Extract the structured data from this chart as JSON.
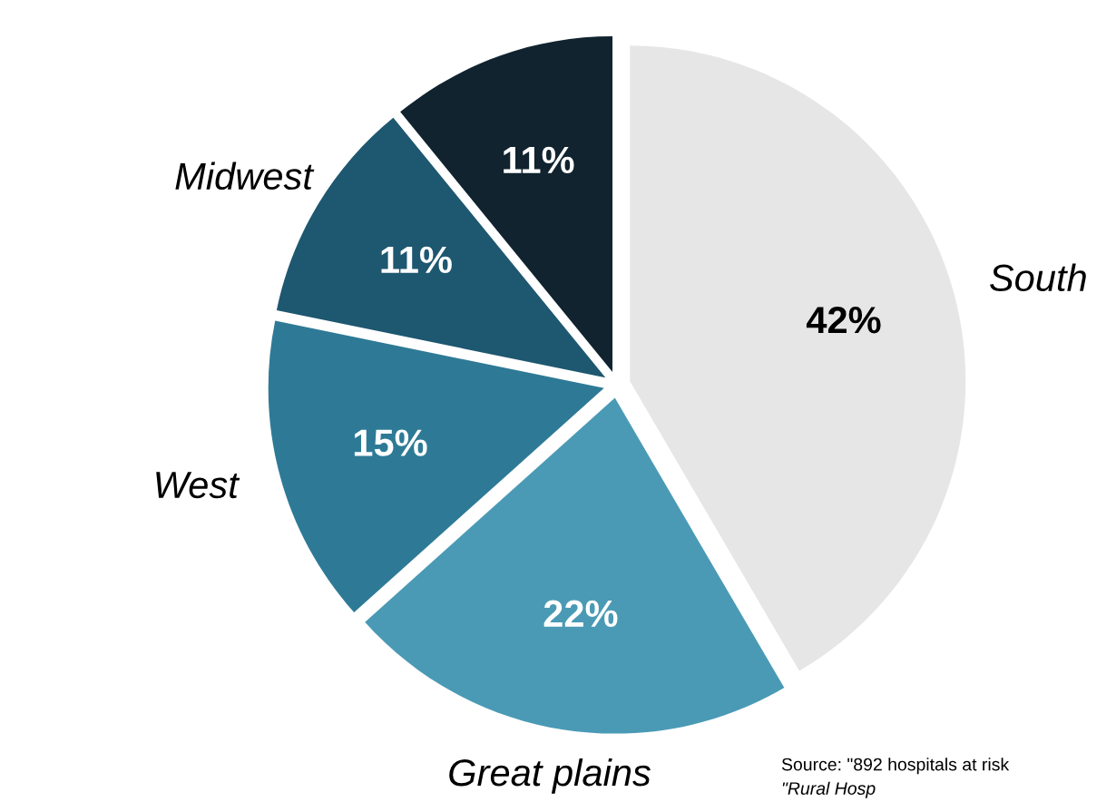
{
  "chart_data": {
    "type": "pie",
    "categories": [
      "South",
      "Great plains",
      "West",
      "Midwest",
      null
    ],
    "values": [
      42,
      22,
      15,
      11,
      11
    ],
    "colors": [
      "#e6e6e6",
      "#4a9ab5",
      "#2e7a96",
      "#1e5770",
      "#10232f"
    ],
    "value_labels": [
      "42%",
      "22%",
      "15%",
      "11%",
      "11%"
    ],
    "annotations": [
      "Source: \"892 hospitals at risk",
      "\"Rural Hosp"
    ]
  }
}
